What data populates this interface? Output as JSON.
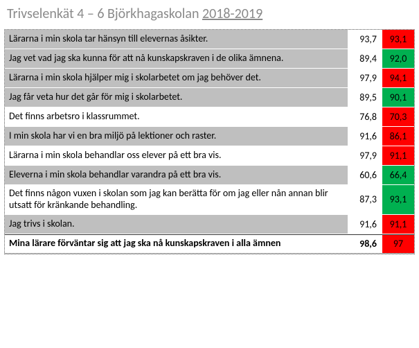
{
  "title_prefix": "Trivselenkät 4 – 6 Björkhagaskolan ",
  "title_year": "2018-2019",
  "rows": [
    {
      "q": "Lärarna i min skola tar hänsyn till elevernas åsikter.",
      "v1": "93,7",
      "v2": "93,1",
      "c": "red",
      "bg": "gray"
    },
    {
      "q": "Jag vet vad jag ska kunna för att nå kunskapskraven i de olika ämnena.",
      "v1": "89,4",
      "v2": "92,0",
      "c": "green",
      "bg": "gray"
    },
    {
      "q": "Lärarna i min skola hjälper mig i skolarbetet om jag behöver det.",
      "v1": "97,9",
      "v2": "94,1",
      "c": "red",
      "bg": "gray"
    },
    {
      "q": "Jag får veta hur det går för mig i skolarbetet.",
      "v1": "89,5",
      "v2": "90,1",
      "c": "green",
      "bg": "gray"
    },
    {
      "q": "Det finns arbetsro i klassrummet.",
      "v1": "76,8",
      "v2": "70,3",
      "c": "red",
      "bg": "white"
    },
    {
      "q": "I min skola har vi en bra miljö på lektioner och raster.",
      "v1": "91,6",
      "v2": "86,1",
      "c": "red",
      "bg": "gray"
    },
    {
      "q": "Lärarna i min skola behandlar oss elever på ett bra vis.",
      "v1": "97,9",
      "v2": "91,1",
      "c": "red",
      "bg": "white"
    },
    {
      "q": "Eleverna i min skola behandlar varandra på ett bra vis.",
      "v1": "60,6",
      "v2": "66,4",
      "c": "green",
      "bg": "gray"
    },
    {
      "q": "Det finns någon vuxen i skolan som jag kan berätta för om jag eller nån annan blir utsatt för kränkande behandling.",
      "v1": "87,3",
      "v2": "93,1",
      "c": "green",
      "bg": "white"
    },
    {
      "q": "Jag trivs i skolan.",
      "v1": "91,6",
      "v2": "91,1",
      "c": "red",
      "bg": "gray"
    },
    {
      "q": "Mina lärare förväntar sig att jag ska nå kunskapskraven i alla ämnen",
      "v1": "98,6",
      "v2": "97",
      "c": "red",
      "bg": "white",
      "last": true
    }
  ]
}
